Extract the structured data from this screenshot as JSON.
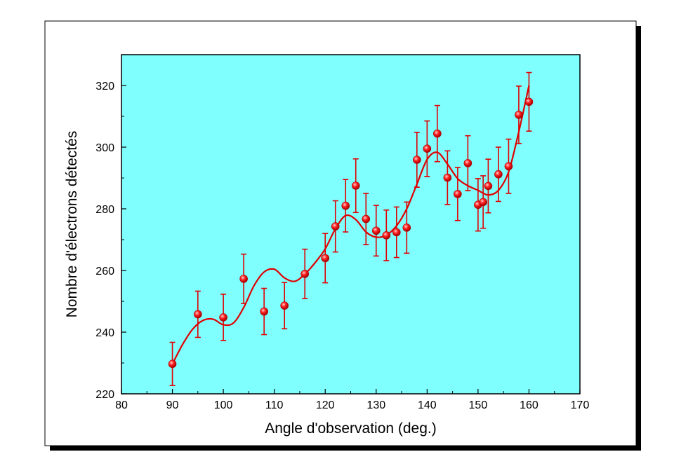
{
  "chart_data": {
    "type": "scatter",
    "title": "",
    "xlabel": "Angle d'observation (deg.)",
    "ylabel": "Nombre d'électrons détectés",
    "xlim": [
      80,
      170
    ],
    "ylim": [
      220,
      330
    ],
    "x_ticks": [
      80,
      90,
      100,
      110,
      120,
      130,
      140,
      150,
      160,
      170
    ],
    "y_ticks": [
      220,
      240,
      260,
      280,
      300,
      320
    ],
    "grid": false,
    "legend": "none",
    "colors": {
      "plot_background": "#80ffff",
      "series": "#e00000",
      "frame_shadow": "#000000"
    },
    "series": [
      {
        "points": [
          {
            "x": 90,
            "y": 229.7,
            "err": 7.0
          },
          {
            "x": 95,
            "y": 245.8,
            "err": 7.5
          },
          {
            "x": 100,
            "y": 244.8,
            "err": 7.5
          },
          {
            "x": 104,
            "y": 257.3,
            "err": 8.0
          },
          {
            "x": 108,
            "y": 246.7,
            "err": 7.5
          },
          {
            "x": 112,
            "y": 248.6,
            "err": 7.5
          },
          {
            "x": 116,
            "y": 258.9,
            "err": 8.0
          },
          {
            "x": 120,
            "y": 264.0,
            "err": 8.0
          },
          {
            "x": 122,
            "y": 274.3,
            "err": 8.3
          },
          {
            "x": 124,
            "y": 281.0,
            "err": 8.5
          },
          {
            "x": 126,
            "y": 287.5,
            "err": 8.7
          },
          {
            "x": 128,
            "y": 276.7,
            "err": 8.3
          },
          {
            "x": 130,
            "y": 272.9,
            "err": 8.2
          },
          {
            "x": 132,
            "y": 271.4,
            "err": 8.2
          },
          {
            "x": 134,
            "y": 272.4,
            "err": 8.2
          },
          {
            "x": 136,
            "y": 273.9,
            "err": 8.3
          },
          {
            "x": 138,
            "y": 295.9,
            "err": 8.9
          },
          {
            "x": 140,
            "y": 299.5,
            "err": 9.0
          },
          {
            "x": 142,
            "y": 304.4,
            "err": 9.1
          },
          {
            "x": 144,
            "y": 290.1,
            "err": 8.7
          },
          {
            "x": 146,
            "y": 284.8,
            "err": 8.6
          },
          {
            "x": 148,
            "y": 294.8,
            "err": 8.9
          },
          {
            "x": 150,
            "y": 281.3,
            "err": 8.5
          },
          {
            "x": 151,
            "y": 282.2,
            "err": 8.5
          },
          {
            "x": 152,
            "y": 287.4,
            "err": 8.7
          },
          {
            "x": 154,
            "y": 291.2,
            "err": 8.8
          },
          {
            "x": 156,
            "y": 293.8,
            "err": 8.8
          },
          {
            "x": 158,
            "y": 310.5,
            "err": 9.3
          },
          {
            "x": 160,
            "y": 314.7,
            "err": 9.5
          }
        ],
        "fit_curve": [
          [
            90,
            229.7
          ],
          [
            92,
            236.0
          ],
          [
            94,
            241.0
          ],
          [
            96,
            243.8
          ],
          [
            98,
            244.2
          ],
          [
            100,
            242.4
          ],
          [
            102,
            243.0
          ],
          [
            104,
            248.0
          ],
          [
            106,
            255.0
          ],
          [
            108,
            259.5
          ],
          [
            110,
            260.4
          ],
          [
            112,
            257.6
          ],
          [
            114,
            256.5
          ],
          [
            116,
            258.8
          ],
          [
            118,
            262.5
          ],
          [
            120,
            267.0
          ],
          [
            122,
            273.5
          ],
          [
            124,
            277.8
          ],
          [
            126,
            276.5
          ],
          [
            128,
            272.5
          ],
          [
            130,
            270.8
          ],
          [
            132,
            271.5
          ],
          [
            134,
            274.5
          ],
          [
            136,
            280.0
          ],
          [
            138,
            288.0
          ],
          [
            140,
            296.0
          ],
          [
            142,
            298.3
          ],
          [
            144,
            294.5
          ],
          [
            146,
            289.8
          ],
          [
            148,
            287.5
          ],
          [
            150,
            286.0
          ],
          [
            152,
            284.5
          ],
          [
            154,
            286.0
          ],
          [
            156,
            292.0
          ],
          [
            158,
            305.0
          ],
          [
            160,
            320.0
          ]
        ]
      }
    ]
  }
}
